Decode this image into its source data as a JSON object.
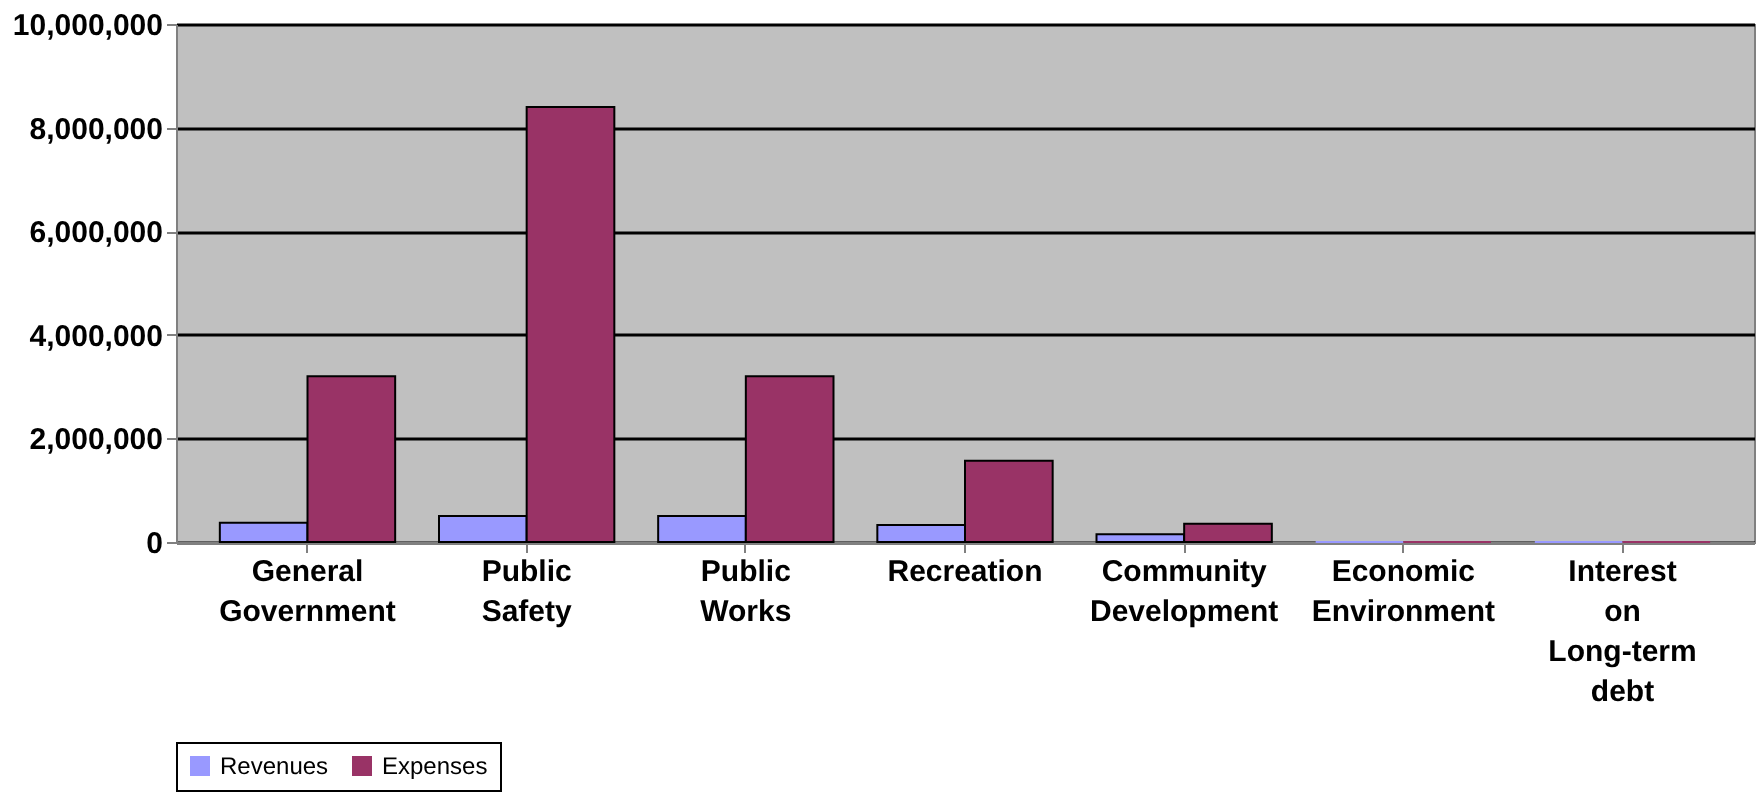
{
  "chart_data": {
    "type": "bar",
    "categories": [
      "General Government",
      "Public Safety",
      "Public Works",
      "Recreation",
      "Community Development",
      "Economic Environment",
      "Interest on Long-term debt"
    ],
    "series": [
      {
        "name": "Revenues",
        "color": "#9999ff",
        "values": [
          370000,
          500000,
          500000,
          330000,
          150000,
          0,
          0
        ]
      },
      {
        "name": "Expenses",
        "color": "#993366",
        "values": [
          3200000,
          8400000,
          3200000,
          1570000,
          350000,
          0,
          0
        ]
      }
    ],
    "ylim": [
      0,
      10000000
    ],
    "yticks": [
      0,
      {
        "value": 2000000,
        "label": "2,000,000"
      },
      {
        "value": 4000000,
        "label": "4,000,000"
      },
      {
        "value": 6000000,
        "label": "6,000,000"
      },
      {
        "value": 8000000,
        "label": "8,000,000"
      },
      {
        "value": 10000000,
        "label": "10,000,000"
      }
    ],
    "grid": "y",
    "legend": "bottom"
  }
}
